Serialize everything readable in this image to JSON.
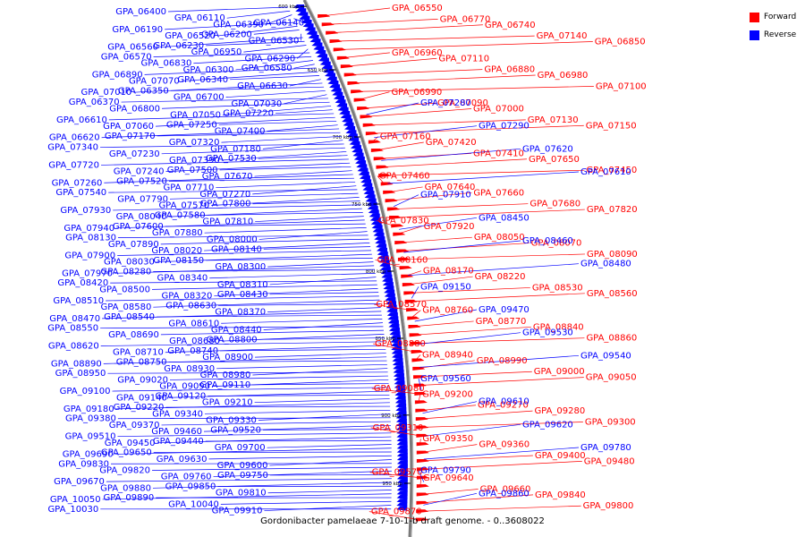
{
  "legend": {
    "forward_label": "Forward",
    "forward_color": "#ff0000",
    "reverse_label": "Reverse",
    "reverse_color": "#0000ff"
  },
  "caption": "Gordonibacter pamelaeae 7-10-1-b draft genome. - 0..3608022",
  "ticks": [
    {
      "label": "600 kbp",
      "pos": 0.012
    },
    {
      "label": "650 kbp",
      "pos": 0.13
    },
    {
      "label": "700 kbp",
      "pos": 0.255
    },
    {
      "label": "750 kbp",
      "pos": 0.38
    },
    {
      "label": "800 kbp",
      "pos": 0.505
    },
    {
      "label": "850 kbp",
      "pos": 0.63
    },
    {
      "label": "900 kbp",
      "pos": 0.773
    },
    {
      "label": "950 kbp",
      "pos": 0.9
    }
  ],
  "reverse_genes": [
    "GPA_06400",
    "GPA_06110",
    "GPA_06390",
    "GPA_06140",
    "GPA_06190",
    "GPA_06520",
    "GPA_06200",
    "GPA_06530",
    "GPA_06560",
    "GPA_06230",
    "GPA_06950",
    "GPA_06290",
    "GPA_06570",
    "GPA_06830",
    "GPA_06300",
    "GPA_06580",
    "GPA_06890",
    "GPA_07070",
    "GPA_06340",
    "GPA_06630",
    "GPA_07010",
    "GPA_06350",
    "GPA_06700",
    "GPA_07030",
    "GPA_06370",
    "GPA_06800",
    "GPA_07050",
    "GPA_07220",
    "GPA_06610",
    "GPA_07060",
    "GPA_07250",
    "GPA_07400",
    "GPA_06620",
    "GPA_07170",
    "GPA_07320",
    "GPA_07180",
    "GPA_07340",
    "GPA_07230",
    "GPA_07390",
    "GPA_07530",
    "GPA_07720",
    "GPA_07240",
    "GPA_07500",
    "GPA_07670",
    "GPA_07260",
    "GPA_07520",
    "GPA_07710",
    "GPA_07270",
    "GPA_07540",
    "GPA_07790",
    "GPA_07570",
    "GPA_07800",
    "GPA_07930",
    "GPA_08040",
    "GPA_07580",
    "GPA_07810",
    "GPA_07940",
    "GPA_07600",
    "GPA_07880",
    "GPA_08000",
    "GPA_08130",
    "GPA_07890",
    "GPA_08020",
    "GPA_08140",
    "GPA_07900",
    "GPA_08030",
    "GPA_08150",
    "GPA_08300",
    "GPA_07970",
    "GPA_08280",
    "GPA_08340",
    "GPA_08310",
    "GPA_08420",
    "GPA_08500",
    "GPA_08320",
    "GPA_08430",
    "GPA_08510",
    "GPA_08580",
    "GPA_08630",
    "GPA_08370",
    "GPA_08470",
    "GPA_08540",
    "GPA_08610",
    "GPA_08440",
    "GPA_08550",
    "GPA_08690",
    "GPA_08680",
    "GPA_08800",
    "GPA_08620",
    "GPA_08710",
    "GPA_08740",
    "GPA_08900",
    "GPA_08890",
    "GPA_08750",
    "GPA_08930",
    "GPA_08980",
    "GPA_08950",
    "GPA_09020",
    "GPA_09090",
    "GPA_09110",
    "GPA_09100",
    "GPA_09140",
    "GPA_09120",
    "GPA_09210",
    "GPA_09180",
    "GPA_09220",
    "GPA_09340",
    "GPA_09330",
    "GPA_09380",
    "GPA_09370",
    "GPA_09460",
    "GPA_09520",
    "GPA_09510",
    "GPA_09450",
    "GPA_09440",
    "GPA_09700",
    "GPA_09690",
    "GPA_09650",
    "GPA_09630",
    "GPA_09600",
    "GPA_09830",
    "GPA_09820",
    "GPA_09760",
    "GPA_09750",
    "GPA_09670",
    "GPA_09880",
    "GPA_09850",
    "GPA_09810",
    "GPA_10050",
    "GPA_09890",
    "GPA_10040",
    "GPA_09910",
    "GPA_10030"
  ],
  "forward_genes": [
    "GPA_06550",
    "GPA_06770",
    "GPA_06740",
    "GPA_07140",
    "GPA_06850",
    "GPA_06960",
    "GPA_07110",
    "GPA_06880",
    "GPA_06980",
    "GPA_07100",
    "GPA_06990",
    "GPA_07090",
    "GPA_07000",
    "GPA_07130",
    "GPA_07150",
    "GPA_07160",
    "GPA_07420",
    "GPA_07410",
    "GPA_07650",
    "GPA_07450",
    "GPA_07460",
    "GPA_07640",
    "GPA_07660",
    "GPA_07680",
    "GPA_07820",
    "GPA_07830",
    "GPA_07920",
    "GPA_08050",
    "GPA_08070",
    "GPA_08090",
    "GPA_08160",
    "GPA_08170",
    "GPA_08220",
    "GPA_08530",
    "GPA_08560",
    "GPA_08570",
    "GPA_08760",
    "GPA_08770",
    "GPA_08840",
    "GPA_08860",
    "GPA_08880",
    "GPA_08940",
    "GPA_08990",
    "GPA_09000",
    "GPA_09050",
    "GPA_09080",
    "GPA_09200",
    "GPA_09270",
    "GPA_09280",
    "GPA_09300",
    "GPA_09310",
    "GPA_09350",
    "GPA_09360",
    "GPA_09400",
    "GPA_09480",
    "GPA_09570",
    "GPA_09640",
    "GPA_09660",
    "GPA_09840",
    "GPA_09800",
    "GPA_09870"
  ],
  "right_reverse_genes": [
    "GPA_07280",
    "GPA_07290",
    "GPA_07620",
    "GPA_07610",
    "GPA_07910",
    "GPA_08450",
    "GPA_08460",
    "GPA_08480",
    "GPA_09150",
    "GPA_09470",
    "GPA_09530",
    "GPA_09540",
    "GPA_09560",
    "GPA_09610",
    "GPA_09620",
    "GPA_09780",
    "GPA_09790",
    "GPA_09860"
  ]
}
